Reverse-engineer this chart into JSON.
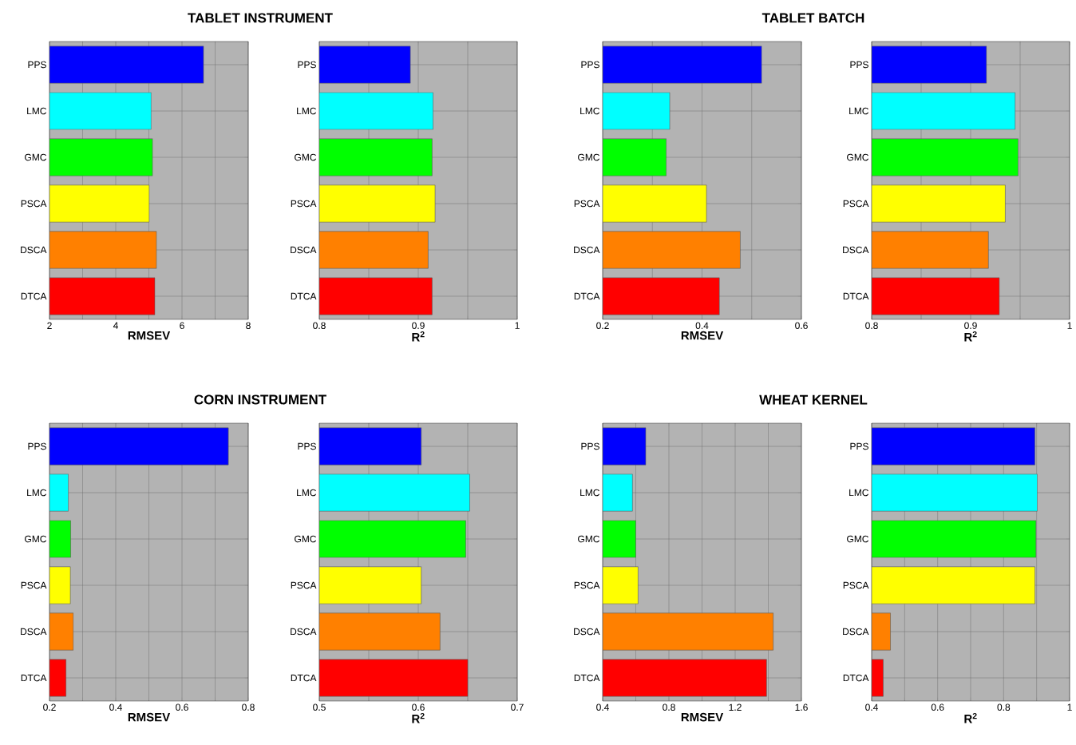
{
  "chart_data": [
    {
      "type": "bar",
      "orientation": "horizontal",
      "title": "TABLET INSTRUMENT",
      "xlabel": "RMSEV",
      "categories": [
        "PPS",
        "LMC",
        "GMC",
        "PSCA",
        "DSCA",
        "DTCA"
      ],
      "values": [
        6.65,
        5.07,
        5.11,
        5.01,
        5.23,
        5.18
      ],
      "colors": [
        "#0000ff",
        "#00ffff",
        "#00ff00",
        "#ffff00",
        "#ff8000",
        "#ff0000"
      ],
      "xlim": [
        2,
        8
      ],
      "xticks": [
        2,
        {
          "value": 3,
          "label": null
        },
        4,
        {
          "value": 5,
          "label": null
        },
        6,
        {
          "value": 7,
          "label": null
        },
        8
      ],
      "grid": true
    },
    {
      "type": "bar",
      "orientation": "horizontal",
      "xlabel": "R$^{2}$",
      "categories": [
        "PPS",
        "LMC",
        "GMC",
        "PSCA",
        "DSCA",
        "DTCA"
      ],
      "values": [
        0.892,
        0.915,
        0.914,
        0.917,
        0.91,
        0.914
      ],
      "colors": [
        "#0000ff",
        "#00ffff",
        "#00ff00",
        "#ffff00",
        "#ff8000",
        "#ff0000"
      ],
      "xlim": [
        0.8,
        1
      ],
      "xticks": [
        0.8,
        {
          "value": 0.85,
          "label": null
        },
        0.9,
        {
          "value": 0.95,
          "label": null
        },
        1
      ],
      "grid": true
    },
    {
      "type": "bar",
      "orientation": "horizontal",
      "title": "TABLET BATCH",
      "xlabel": "RMSEV",
      "categories": [
        "PPS",
        "LMC",
        "GMC",
        "PSCA",
        "DSCA",
        "DTCA"
      ],
      "values": [
        0.52,
        0.335,
        0.328,
        0.409,
        0.477,
        0.435
      ],
      "colors": [
        "#0000ff",
        "#00ffff",
        "#00ff00",
        "#ffff00",
        "#ff8000",
        "#ff0000"
      ],
      "xlim": [
        0.2,
        0.6
      ],
      "xticks": [
        0.2,
        {
          "value": 0.3,
          "label": null
        },
        0.4,
        {
          "value": 0.5,
          "label": null
        },
        0.6
      ],
      "grid": true
    },
    {
      "type": "bar",
      "orientation": "horizontal",
      "xlabel": "R$^{2}$",
      "categories": [
        "PPS",
        "LMC",
        "GMC",
        "PSCA",
        "DSCA",
        "DTCA"
      ],
      "values": [
        0.916,
        0.945,
        0.948,
        0.935,
        0.918,
        0.929
      ],
      "colors": [
        "#0000ff",
        "#00ffff",
        "#00ff00",
        "#ffff00",
        "#ff8000",
        "#ff0000"
      ],
      "xlim": [
        0.8,
        1
      ],
      "xticks": [
        0.8,
        {
          "value": 0.85,
          "label": null
        },
        0.9,
        {
          "value": 0.95,
          "label": null
        },
        1
      ],
      "grid": true
    },
    {
      "type": "bar",
      "orientation": "horizontal",
      "title": "CORN INSTRUMENT",
      "xlabel": "RMSEV",
      "categories": [
        "PPS",
        "LMC",
        "GMC",
        "PSCA",
        "DSCA",
        "DTCA"
      ],
      "values": [
        0.74,
        0.257,
        0.264,
        0.263,
        0.272,
        0.25
      ],
      "colors": [
        "#0000ff",
        "#00ffff",
        "#00ff00",
        "#ffff00",
        "#ff8000",
        "#ff0000"
      ],
      "xlim": [
        0.2,
        0.8
      ],
      "xticks": [
        0.2,
        {
          "value": 0.3,
          "label": null
        },
        0.4,
        {
          "value": 0.5,
          "label": null
        },
        0.6,
        {
          "value": 0.7,
          "label": null
        },
        0.8
      ],
      "grid": true
    },
    {
      "type": "bar",
      "orientation": "horizontal",
      "xlabel": "R$^{2}$",
      "categories": [
        "PPS",
        "LMC",
        "GMC",
        "PSCA",
        "DSCA",
        "DTCA"
      ],
      "values": [
        0.603,
        0.652,
        0.648,
        0.603,
        0.622,
        0.65
      ],
      "colors": [
        "#0000ff",
        "#00ffff",
        "#00ff00",
        "#ffff00",
        "#ff8000",
        "#ff0000"
      ],
      "xlim": [
        0.5,
        0.7
      ],
      "xticks": [
        0.5,
        {
          "value": 0.55,
          "label": null
        },
        0.6,
        {
          "value": 0.65,
          "label": null
        },
        0.7
      ],
      "grid": true
    },
    {
      "type": "bar",
      "orientation": "horizontal",
      "title": "WHEAT KERNEL",
      "xlabel": "RMSEV",
      "categories": [
        "PPS",
        "LMC",
        "GMC",
        "PSCA",
        "DSCA",
        "DTCA"
      ],
      "values": [
        0.66,
        0.58,
        0.6,
        0.614,
        1.43,
        1.39
      ],
      "colors": [
        "#0000ff",
        "#00ffff",
        "#00ff00",
        "#ffff00",
        "#ff8000",
        "#ff0000"
      ],
      "xlim": [
        0.4,
        1.6
      ],
      "xticks": [
        0.4,
        {
          "value": 0.6,
          "label": null
        },
        0.8,
        {
          "value": 1.0,
          "label": null
        },
        1.2,
        {
          "value": 1.4,
          "label": null
        },
        1.6
      ],
      "grid": true
    },
    {
      "type": "bar",
      "orientation": "horizontal",
      "xlabel": "R$^{2}$",
      "categories": [
        "PPS",
        "LMC",
        "GMC",
        "PSCA",
        "DSCA",
        "DTCA"
      ],
      "values": [
        0.895,
        0.902,
        0.898,
        0.895,
        0.457,
        0.435
      ],
      "colors": [
        "#0000ff",
        "#00ffff",
        "#00ff00",
        "#ffff00",
        "#ff8000",
        "#ff0000"
      ],
      "xlim": [
        0.4,
        1
      ],
      "xticks": [
        0.4,
        {
          "value": 0.5,
          "label": null
        },
        0.6,
        {
          "value": 0.7,
          "label": null
        },
        0.8,
        {
          "value": 0.9,
          "label": null
        },
        1
      ],
      "grid": true
    }
  ]
}
